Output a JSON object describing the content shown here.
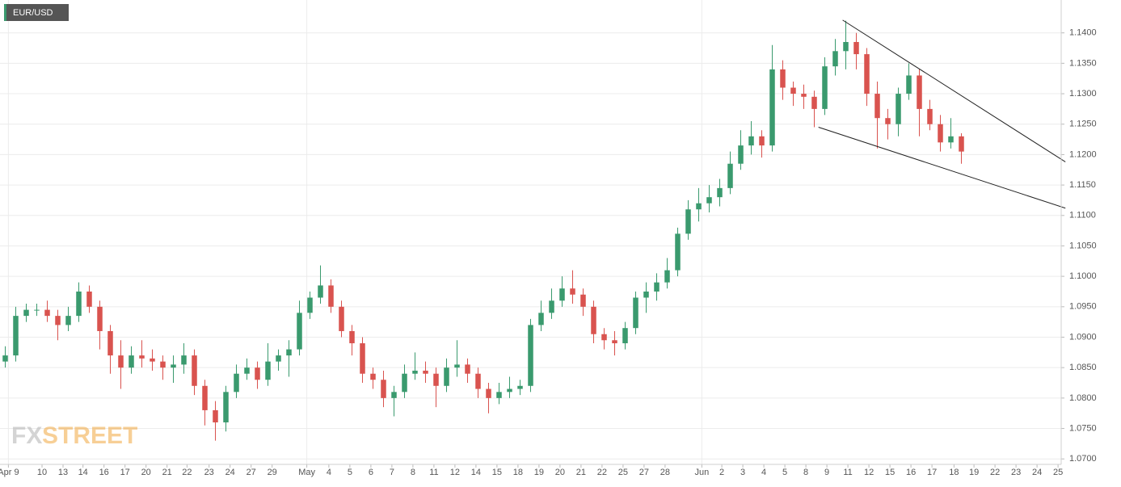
{
  "chart_data": {
    "type": "candlestick",
    "title": "EUR/USD",
    "watermark": [
      "FX",
      "STREET"
    ],
    "up_color": "#3a9a6e",
    "down_color": "#d9534f",
    "grid": true,
    "open": [
      1.086,
      1.087,
      1.0935,
      1.0945,
      1.0945,
      1.0935,
      1.092,
      1.0935,
      1.0975,
      1.095,
      1.091,
      1.087,
      1.085,
      1.087,
      1.0865,
      1.086,
      1.085,
      1.0855,
      1.087,
      1.082,
      1.078,
      1.076,
      1.081,
      1.084,
      1.085,
      1.083,
      1.086,
      1.087,
      1.088,
      1.094,
      1.0965,
      1.0985,
      1.095,
      1.091,
      1.089,
      1.084,
      1.083,
      1.08,
      1.081,
      1.084,
      1.0845,
      1.084,
      1.082,
      1.085,
      1.0855,
      1.084,
      1.0815,
      1.08,
      1.081,
      1.0815,
      1.082,
      1.092,
      1.094,
      1.096,
      1.098,
      1.097,
      1.095,
      1.0905,
      1.0895,
      1.089,
      1.0915,
      1.0965,
      1.0975,
      1.099,
      1.101,
      1.107,
      1.111,
      1.112,
      1.113,
      1.1145,
      1.1185,
      1.1215,
      1.123,
      1.1215,
      1.134,
      1.131,
      1.13,
      1.1295,
      1.1275,
      1.1345,
      1.137,
      1.1385,
      1.1365,
      1.13,
      1.126,
      1.125,
      1.13,
      1.133,
      1.1275,
      1.125,
      1.122,
      1.123
    ],
    "high": [
      1.0885,
      1.095,
      1.0955,
      1.0955,
      1.096,
      1.0945,
      1.095,
      1.099,
      1.0985,
      1.096,
      1.092,
      1.0895,
      1.0885,
      1.0895,
      1.088,
      1.087,
      1.087,
      1.089,
      1.088,
      1.083,
      1.0795,
      1.082,
      1.0855,
      1.0865,
      1.086,
      1.089,
      1.088,
      1.0895,
      1.096,
      1.0975,
      1.1018,
      1.0995,
      1.096,
      1.092,
      1.09,
      1.085,
      1.0845,
      1.082,
      1.0855,
      1.0875,
      1.086,
      1.085,
      1.0865,
      1.0895,
      1.0865,
      1.085,
      1.0825,
      1.0825,
      1.0835,
      1.083,
      1.093,
      1.096,
      1.098,
      1.1,
      1.101,
      1.098,
      1.096,
      1.0915,
      1.091,
      1.0925,
      1.0975,
      1.099,
      1.1005,
      1.103,
      1.108,
      1.1125,
      1.1145,
      1.115,
      1.116,
      1.1205,
      1.124,
      1.1255,
      1.124,
      1.138,
      1.1355,
      1.132,
      1.1315,
      1.1305,
      1.136,
      1.139,
      1.142,
      1.14,
      1.1375,
      1.132,
      1.1275,
      1.131,
      1.135,
      1.134,
      1.129,
      1.1265,
      1.126,
      1.1235
    ],
    "low": [
      1.085,
      1.086,
      1.0925,
      1.0935,
      1.0925,
      1.0895,
      1.091,
      1.0925,
      1.094,
      1.088,
      1.084,
      1.0815,
      1.084,
      1.085,
      1.0845,
      1.083,
      1.0825,
      1.084,
      1.0805,
      1.0755,
      1.073,
      1.0745,
      1.08,
      1.083,
      1.0815,
      1.082,
      1.0845,
      1.0835,
      1.087,
      1.093,
      1.0955,
      1.094,
      1.09,
      1.087,
      1.0825,
      1.0815,
      1.0785,
      1.077,
      1.08,
      1.083,
      1.0825,
      1.0785,
      1.081,
      1.0835,
      1.0825,
      1.08,
      1.0775,
      1.079,
      1.08,
      1.0805,
      1.081,
      1.091,
      1.093,
      1.095,
      1.0955,
      1.0935,
      1.089,
      1.088,
      1.087,
      1.088,
      1.0905,
      1.094,
      1.096,
      1.098,
      1.1,
      1.106,
      1.109,
      1.1105,
      1.1115,
      1.1135,
      1.1175,
      1.12,
      1.1195,
      1.1205,
      1.129,
      1.128,
      1.1275,
      1.1245,
      1.1265,
      1.133,
      1.134,
      1.134,
      1.128,
      1.121,
      1.1225,
      1.123,
      1.129,
      1.123,
      1.124,
      1.1205,
      1.121,
      1.1185
    ],
    "close": [
      1.087,
      1.0935,
      1.0945,
      1.0945,
      1.0935,
      1.092,
      1.0935,
      1.0975,
      1.095,
      1.091,
      1.087,
      1.085,
      1.087,
      1.0865,
      1.086,
      1.085,
      1.0855,
      1.087,
      1.082,
      1.078,
      1.076,
      1.081,
      1.084,
      1.085,
      1.083,
      1.086,
      1.087,
      1.088,
      1.094,
      1.0965,
      1.0985,
      1.095,
      1.091,
      1.089,
      1.084,
      1.083,
      1.08,
      1.081,
      1.084,
      1.0845,
      1.084,
      1.082,
      1.085,
      1.0855,
      1.084,
      1.0815,
      1.08,
      1.081,
      1.0815,
      1.082,
      1.092,
      1.094,
      1.096,
      1.098,
      1.097,
      1.095,
      1.0905,
      1.0895,
      1.089,
      1.0915,
      1.0965,
      1.0975,
      1.099,
      1.101,
      1.107,
      1.111,
      1.112,
      1.113,
      1.1145,
      1.1185,
      1.1215,
      1.123,
      1.1215,
      1.134,
      1.131,
      1.13,
      1.1295,
      1.1275,
      1.1345,
      1.137,
      1.1385,
      1.1365,
      1.13,
      1.126,
      1.125,
      1.13,
      1.133,
      1.1275,
      1.125,
      1.122,
      1.123,
      1.1205
    ],
    "trendlines": [
      {
        "x": [
          79.7,
          100.9
        ],
        "y": [
          1.1421,
          1.1188
        ]
      },
      {
        "x": [
          77.4,
          100.9
        ],
        "y": [
          1.1245,
          1.1112
        ]
      }
    ],
    "xlim": [
      -0.5,
      100.5
    ],
    "ylim": [
      1.0691,
      1.1454
    ],
    "xticks": [
      {
        "value": 0.3,
        "label": "Apr 9"
      },
      {
        "value": 3.5,
        "label": "10"
      },
      {
        "value": 5.5,
        "label": "13"
      },
      {
        "value": 7.4,
        "label": "14"
      },
      {
        "value": 9.4,
        "label": "16"
      },
      {
        "value": 11.4,
        "label": "17"
      },
      {
        "value": 13.4,
        "label": "20"
      },
      {
        "value": 15.4,
        "label": "21"
      },
      {
        "value": 17.3,
        "label": "22"
      },
      {
        "value": 19.4,
        "label": "23"
      },
      {
        "value": 21.4,
        "label": "24"
      },
      {
        "value": 23.4,
        "label": "27"
      },
      {
        "value": 25.4,
        "label": "29"
      },
      {
        "value": 28.7,
        "label": "May"
      },
      {
        "value": 30.8,
        "label": "4"
      },
      {
        "value": 32.8,
        "label": "5"
      },
      {
        "value": 34.8,
        "label": "6"
      },
      {
        "value": 36.8,
        "label": "7"
      },
      {
        "value": 38.8,
        "label": "8"
      },
      {
        "value": 40.8,
        "label": "11"
      },
      {
        "value": 42.8,
        "label": "12"
      },
      {
        "value": 44.8,
        "label": "14"
      },
      {
        "value": 46.8,
        "label": "15"
      },
      {
        "value": 48.8,
        "label": "18"
      },
      {
        "value": 50.8,
        "label": "19"
      },
      {
        "value": 52.8,
        "label": "20"
      },
      {
        "value": 54.8,
        "label": "21"
      },
      {
        "value": 56.8,
        "label": "22"
      },
      {
        "value": 58.8,
        "label": "25"
      },
      {
        "value": 60.8,
        "label": "27"
      },
      {
        "value": 62.8,
        "label": "28"
      },
      {
        "value": 66.3,
        "label": "Jun"
      },
      {
        "value": 68.2,
        "label": "2"
      },
      {
        "value": 70.2,
        "label": "3"
      },
      {
        "value": 72.2,
        "label": "4"
      },
      {
        "value": 74.2,
        "label": "5"
      },
      {
        "value": 76.2,
        "label": "8"
      },
      {
        "value": 78.2,
        "label": "9"
      },
      {
        "value": 80.2,
        "label": "11"
      },
      {
        "value": 82.2,
        "label": "12"
      },
      {
        "value": 84.2,
        "label": "15"
      },
      {
        "value": 86.2,
        "label": "16"
      },
      {
        "value": 88.2,
        "label": "17"
      },
      {
        "value": 90.3,
        "label": "18"
      },
      {
        "value": 92.2,
        "label": "19"
      },
      {
        "value": 94.2,
        "label": "22"
      },
      {
        "value": 96.2,
        "label": "23"
      },
      {
        "value": 98.2,
        "label": "24"
      },
      {
        "value": 100.2,
        "label": "25"
      }
    ],
    "yticks": [
      {
        "value": 1.07,
        "label": "1.0700"
      },
      {
        "value": 1.075,
        "label": "1.0750"
      },
      {
        "value": 1.08,
        "label": "1.0800"
      },
      {
        "value": 1.085,
        "label": "1.0850"
      },
      {
        "value": 1.09,
        "label": "1.0900"
      },
      {
        "value": 1.095,
        "label": "1.0950"
      },
      {
        "value": 1.1,
        "label": "1.1000"
      },
      {
        "value": 1.105,
        "label": "1.1050"
      },
      {
        "value": 1.11,
        "label": "1.1100"
      },
      {
        "value": 1.115,
        "label": "1.1150"
      },
      {
        "value": 1.12,
        "label": "1.1200"
      },
      {
        "value": 1.125,
        "label": "1.1250"
      },
      {
        "value": 1.13,
        "label": "1.1300"
      },
      {
        "value": 1.135,
        "label": "1.1350"
      },
      {
        "value": 1.14,
        "label": "1.1400"
      }
    ]
  }
}
